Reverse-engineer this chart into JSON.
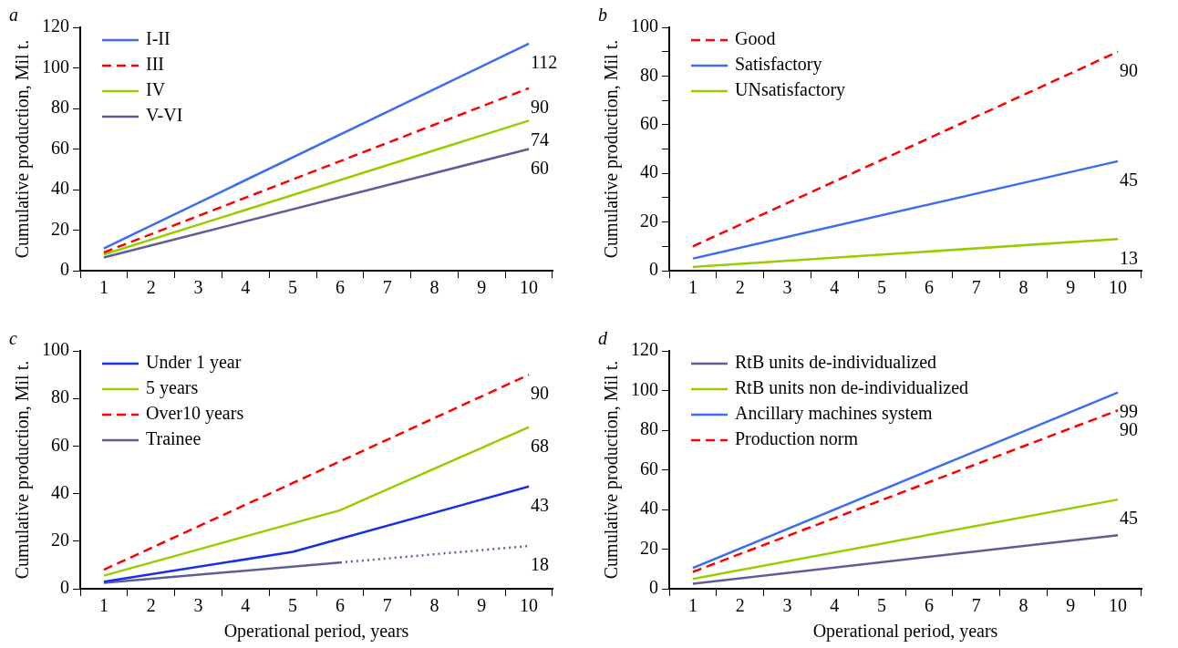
{
  "chart_data": [
    {
      "type": "line",
      "title": "a",
      "ylabel": "Cumulative production, Mil t.",
      "categories": [
        "1",
        "2",
        "3",
        "4",
        "5",
        "6",
        "7",
        "8",
        "9",
        "10"
      ],
      "ylim": [
        0,
        120
      ],
      "yticks": [
        0,
        20,
        40,
        60,
        80,
        100,
        120
      ],
      "grid": false,
      "legend": "top left",
      "marker": "none",
      "series": [
        {
          "name": "I-II",
          "color": "#3c6ef0",
          "line_style": "solid",
          "values": [
            11,
            null,
            null,
            null,
            null,
            null,
            null,
            null,
            null,
            112
          ],
          "value_labels": [
            null,
            null,
            null,
            null,
            null,
            null,
            null,
            null,
            null,
            "112"
          ]
        },
        {
          "name": "III",
          "color": "#ff0000",
          "line_style": "dashed",
          "values": [
            9,
            null,
            null,
            null,
            null,
            null,
            null,
            null,
            null,
            90
          ],
          "value_labels": [
            null,
            null,
            null,
            null,
            null,
            null,
            null,
            null,
            null,
            "90"
          ]
        },
        {
          "name": "IV",
          "color": "#99cc00",
          "line_style": "solid",
          "values": [
            8,
            null,
            null,
            null,
            null,
            null,
            null,
            null,
            null,
            74
          ],
          "value_labels": [
            null,
            null,
            null,
            null,
            null,
            null,
            null,
            null,
            null,
            "74"
          ]
        },
        {
          "name": "V-VI",
          "color": "#5e5e96",
          "line_style": "solid",
          "values": [
            6.5,
            null,
            null,
            null,
            null,
            null,
            null,
            null,
            null,
            60
          ],
          "value_labels": [
            null,
            null,
            null,
            null,
            null,
            null,
            null,
            null,
            null,
            "60"
          ]
        }
      ]
    },
    {
      "type": "line",
      "title": "b",
      "ylabel": "Cumulative production, Mil t.",
      "categories": [
        "1",
        "2",
        "3",
        "4",
        "5",
        "6",
        "7",
        "8",
        "9",
        "10"
      ],
      "ylim": [
        0,
        100
      ],
      "yticks": [
        0,
        {
          "value": 10,
          "label": null
        },
        20,
        {
          "value": 30,
          "label": null
        },
        40,
        {
          "value": 50,
          "label": null
        },
        60,
        {
          "value": 70,
          "label": null
        },
        80,
        {
          "value": 90,
          "label": null
        },
        100
      ],
      "grid": false,
      "legend": "top left",
      "marker": "none",
      "series": [
        {
          "name": "Good",
          "color": "#ff0000",
          "line_style": "dashed",
          "values": [
            10,
            null,
            null,
            null,
            null,
            null,
            null,
            null,
            null,
            90
          ],
          "value_labels": [
            null,
            null,
            null,
            null,
            null,
            null,
            null,
            null,
            null,
            "90"
          ]
        },
        {
          "name": "Satisfactory",
          "color": "#3c6ef0",
          "line_style": "solid",
          "values": [
            5,
            null,
            null,
            null,
            null,
            null,
            null,
            null,
            null,
            45
          ],
          "value_labels": [
            null,
            null,
            null,
            null,
            null,
            null,
            null,
            null,
            null,
            "45"
          ]
        },
        {
          "name": "UNsatisfactory",
          "color": "#99cc00",
          "line_style": "solid",
          "values": [
            1.5,
            null,
            null,
            null,
            null,
            null,
            null,
            null,
            null,
            13
          ],
          "value_labels": [
            null,
            null,
            null,
            null,
            null,
            null,
            null,
            null,
            null,
            "13"
          ]
        }
      ]
    },
    {
      "type": "line",
      "title": "c",
      "xlabel": "Operational period, years",
      "ylabel": "Cumulative production, Mil t.",
      "categories": [
        "1",
        "2",
        "3",
        "4",
        "5",
        "6",
        "7",
        "8",
        "9",
        "10"
      ],
      "ylim": [
        0,
        100
      ],
      "yticks": [
        0,
        20,
        40,
        60,
        80,
        100
      ],
      "grid": false,
      "legend": "top left",
      "marker": "none",
      "series": [
        {
          "name": "Under 1 year",
          "color": "#1a2ee6",
          "line_style": "solid",
          "values": [
            3,
            null,
            null,
            null,
            15.5,
            null,
            null,
            null,
            null,
            43
          ],
          "value_labels": [
            null,
            null,
            null,
            null,
            null,
            null,
            null,
            null,
            null,
            "43"
          ]
        },
        {
          "name": "5 years",
          "color": "#99cc00",
          "line_style": "solid",
          "values": [
            5.5,
            null,
            null,
            null,
            null,
            33,
            null,
            null,
            null,
            68
          ],
          "value_labels": [
            null,
            null,
            null,
            null,
            null,
            null,
            null,
            null,
            null,
            "68"
          ]
        },
        {
          "name": "Over10 years",
          "color": "#ff0000",
          "line_style": "dashed",
          "values": [
            8,
            null,
            null,
            null,
            null,
            null,
            null,
            null,
            null,
            90
          ],
          "value_labels": [
            null,
            null,
            null,
            null,
            null,
            null,
            null,
            null,
            null,
            "90"
          ]
        },
        {
          "name": "Trainee",
          "color": "#5e5e96",
          "line_style": "solid",
          "values": [
            2.5,
            null,
            null,
            null,
            null,
            11,
            null,
            null,
            null,
            null
          ]
        },
        {
          "color": "#5e5e96",
          "line_style": "dotted",
          "values": [
            null,
            null,
            null,
            null,
            null,
            11,
            null,
            null,
            null,
            18
          ],
          "value_labels": [
            null,
            null,
            null,
            null,
            null,
            null,
            null,
            null,
            null,
            "18"
          ]
        }
      ]
    },
    {
      "type": "line",
      "title": "d",
      "xlabel": "Operational period, years",
      "ylabel": "Cumulative production, Mil t.",
      "categories": [
        "1",
        "2",
        "3",
        "4",
        "5",
        "6",
        "7",
        "8",
        "9",
        "10"
      ],
      "ylim": [
        0,
        120
      ],
      "yticks": [
        0,
        20,
        40,
        60,
        80,
        100,
        120
      ],
      "grid": false,
      "legend": "top left",
      "marker": "none",
      "series": [
        {
          "name": "RtB units de-individualized",
          "color": "#5e5e96",
          "line_style": "solid",
          "values": [
            2.5,
            null,
            null,
            null,
            null,
            null,
            null,
            null,
            null,
            27
          ]
        },
        {
          "name": "RtB units non de-individualized",
          "color": "#99cc00",
          "line_style": "solid",
          "values": [
            5,
            null,
            null,
            null,
            null,
            null,
            null,
            null,
            null,
            45
          ],
          "value_labels": [
            null,
            null,
            null,
            null,
            null,
            null,
            null,
            null,
            null,
            "45"
          ]
        },
        {
          "name": "Ancillary machines system",
          "color": "#3c6ef0",
          "line_style": "solid",
          "values": [
            10.5,
            null,
            null,
            null,
            null,
            null,
            null,
            null,
            null,
            99
          ],
          "value_labels": [
            null,
            null,
            null,
            null,
            null,
            null,
            null,
            null,
            null,
            "99"
          ]
        },
        {
          "name": "Production norm",
          "color": "#ff0000",
          "line_style": "dashed",
          "values": [
            8.5,
            null,
            null,
            null,
            null,
            null,
            null,
            null,
            null,
            90
          ],
          "value_labels": [
            null,
            null,
            null,
            null,
            null,
            null,
            null,
            null,
            null,
            "90"
          ]
        }
      ]
    }
  ]
}
